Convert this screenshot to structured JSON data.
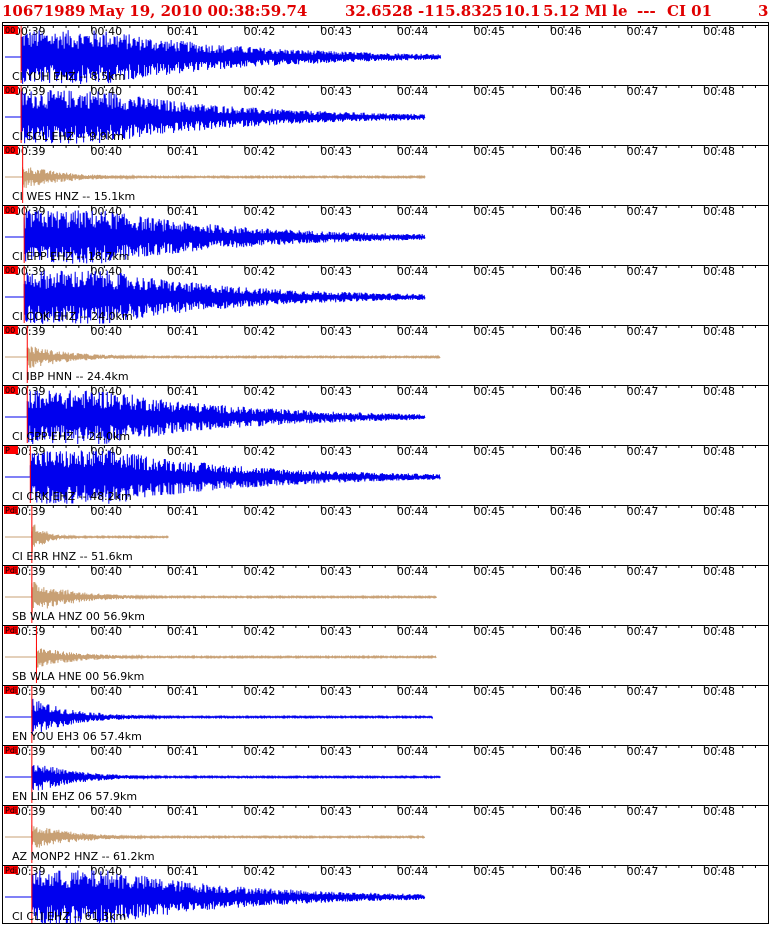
{
  "header": {
    "event_id": "10671989",
    "date_time": "May 19, 2010 00:38:59.74",
    "latitude": "32.6528",
    "longitude": "-115.8325",
    "depth": "10.1",
    "magnitude": "5.12 Ml le",
    "flags": "---",
    "network_version": "CI 01",
    "page": "3"
  },
  "colors": {
    "header_red": "#e00000",
    "vertical_trace": "#0000ee",
    "accelerometer_trace": "#c8a074",
    "pick_marker": "#ff0000",
    "tick": "#000000",
    "background": "#ffffff"
  },
  "chart_data": {
    "type": "seismogram",
    "x_ticks": [
      "00:39",
      "00:40",
      "00:41",
      "00:42",
      "00:43",
      "00:44",
      "00:45",
      "00:46",
      "00:47",
      "00:48"
    ],
    "traces": [
      {
        "label": "CI YUH EHZ -- 8.5km",
        "pick": "00",
        "color": "blue",
        "amplitude": 1.0,
        "onset_min": 0.08,
        "end_min": 5.55,
        "coda": "long"
      },
      {
        "label": "CI SGL EHZ -- 9.9km",
        "pick": "00",
        "color": "blue",
        "amplitude": 1.0,
        "onset_min": 0.08,
        "end_min": 5.35,
        "coda": "long"
      },
      {
        "label": "CI WES HNZ -- 15.1km",
        "pick": "00",
        "color": "tan",
        "amplitude": 0.45,
        "onset_min": 0.1,
        "end_min": 5.35,
        "coda": "short"
      },
      {
        "label": "CI EPP EHZ -- 18.7km",
        "pick": "00",
        "color": "blue",
        "amplitude": 1.0,
        "onset_min": 0.12,
        "end_min": 5.35,
        "coda": "long"
      },
      {
        "label": "CI COK EHZ -- 24.0km",
        "pick": "00",
        "color": "blue",
        "amplitude": 1.0,
        "onset_min": 0.12,
        "end_min": 5.35,
        "coda": "long"
      },
      {
        "label": "CI IBP HNN -- 24.4km",
        "pick": "00",
        "color": "tan",
        "amplitude": 0.45,
        "onset_min": 0.16,
        "end_min": 5.55,
        "coda": "short"
      },
      {
        "label": "CI CPP EHZ -- 24.0km",
        "pick": "00",
        "color": "blue",
        "amplitude": 1.0,
        "onset_min": 0.16,
        "end_min": 5.35,
        "coda": "long"
      },
      {
        "label": "CI CRK EHZ -- 48.2km",
        "pick": "P",
        "color": "blue",
        "amplitude": 1.0,
        "onset_min": 0.2,
        "end_min": 5.55,
        "coda": "long"
      },
      {
        "label": "CI ERR HNZ -- 51.6km",
        "pick": "Pdi",
        "color": "tan",
        "amplitude": 0.6,
        "onset_min": 0.22,
        "end_min": 2.0,
        "coda": "short"
      },
      {
        "label": "SB WLA HNZ 00 56.9km",
        "pick": "Pdi",
        "color": "tan",
        "amplitude": 0.6,
        "onset_min": 0.22,
        "end_min": 5.5,
        "coda": "short"
      },
      {
        "label": "SB WLA HNE 00 56.9km",
        "pick": "Pdi",
        "color": "tan",
        "amplitude": 0.4,
        "onset_min": 0.28,
        "end_min": 5.5,
        "coda": "short"
      },
      {
        "label": "EN YOU EH3 06 57.4km",
        "pick": "Pdi",
        "color": "blue",
        "amplitude": 0.7,
        "onset_min": 0.22,
        "end_min": 5.45,
        "coda": "short"
      },
      {
        "label": "EN LIN EHZ 06 57.9km",
        "pick": "Pdi",
        "color": "blue",
        "amplitude": 0.6,
        "onset_min": 0.22,
        "end_min": 5.55,
        "coda": "short"
      },
      {
        "label": "AZ MONP2 HNZ -- 61.2km",
        "pick": "Pdi",
        "color": "tan",
        "amplitude": 0.5,
        "onset_min": 0.22,
        "end_min": 5.35,
        "coda": "short"
      },
      {
        "label": "CI CLI EHZ -- 61.3km",
        "pick": "Pdi",
        "color": "blue",
        "amplitude": 1.0,
        "onset_min": 0.22,
        "end_min": 5.35,
        "coda": "long"
      }
    ]
  }
}
